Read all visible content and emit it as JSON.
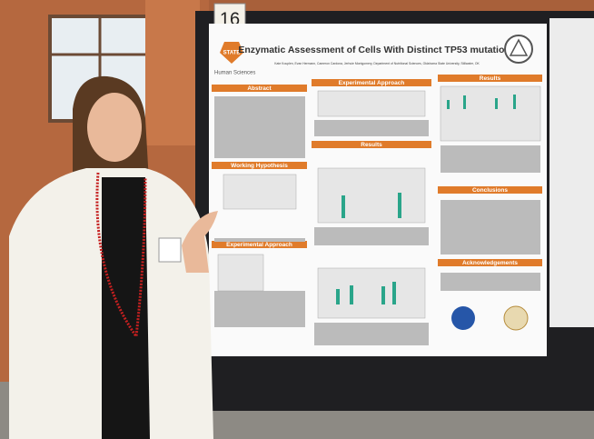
{
  "sign": {
    "number": "16"
  },
  "poster": {
    "logo": "STATE",
    "department": "Human Sciences",
    "title": "Enzymatic Assessment of Cells With Distinct TP53 mutations",
    "authors": "Kate Kouplen, Evan Hermann, Cameron Cardona, Jerhuie Montgomery, Department of Nutritional Sciences, Oklahoma State University, Stillwater, OK",
    "sections": [
      "Abstract",
      "Experimental Approach",
      "Results",
      "Working Hypothesis",
      "Experimental Approach",
      "Results",
      "Conclusions",
      "Acknowledgements"
    ]
  }
}
